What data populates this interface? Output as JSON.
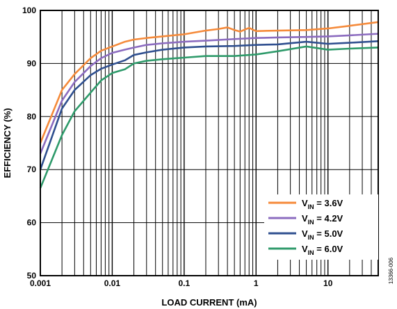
{
  "chart_data": {
    "type": "line",
    "xlabel": "LOAD CURRENT (mA)",
    "ylabel": "EFFICIENCY (%)",
    "x_scale": "log",
    "xlim": [
      0.001,
      50
    ],
    "ylim": [
      50,
      100
    ],
    "x_ticks": [
      0.001,
      0.01,
      0.1,
      1,
      10
    ],
    "x_tick_labels": [
      "0.001",
      "0.01",
      "0.1",
      "1",
      "10"
    ],
    "y_ticks": [
      50,
      60,
      70,
      80,
      90,
      100
    ],
    "y_tick_labels": [
      "50",
      "60",
      "70",
      "80",
      "90",
      "100"
    ],
    "grid": true,
    "legend_position": "bottom-right",
    "figure_id": "13366-006",
    "series": [
      {
        "name_main": "V",
        "name_sub": "IN",
        "name_rest": " = 3.6V",
        "color": "#f58a3a",
        "points": [
          [
            0.001,
            75.0
          ],
          [
            0.002,
            85.0
          ],
          [
            0.003,
            88.0
          ],
          [
            0.005,
            91.0
          ],
          [
            0.007,
            92.4
          ],
          [
            0.01,
            93.2
          ],
          [
            0.015,
            94.1
          ],
          [
            0.02,
            94.5
          ],
          [
            0.03,
            94.8
          ],
          [
            0.05,
            95.1
          ],
          [
            0.1,
            95.5
          ],
          [
            0.2,
            96.2
          ],
          [
            0.3,
            96.5
          ],
          [
            0.4,
            96.8
          ],
          [
            0.5,
            96.3
          ],
          [
            0.6,
            96.0
          ],
          [
            0.7,
            96.4
          ],
          [
            0.8,
            96.7
          ],
          [
            1,
            96.1
          ],
          [
            2,
            96.2
          ],
          [
            5,
            96.3
          ],
          [
            10,
            96.6
          ],
          [
            20,
            97.1
          ],
          [
            50,
            97.8
          ]
        ]
      },
      {
        "name_main": "V",
        "name_sub": "IN",
        "name_rest": " = 4.2V",
        "color": "#8b6bbf",
        "points": [
          [
            0.001,
            73.0
          ],
          [
            0.002,
            83.0
          ],
          [
            0.003,
            86.5
          ],
          [
            0.005,
            89.5
          ],
          [
            0.007,
            91.0
          ],
          [
            0.01,
            92.0
          ],
          [
            0.015,
            92.6
          ],
          [
            0.02,
            93.0
          ],
          [
            0.03,
            93.5
          ],
          [
            0.05,
            93.8
          ],
          [
            0.1,
            94.1
          ],
          [
            0.2,
            94.3
          ],
          [
            0.5,
            94.6
          ],
          [
            1,
            94.8
          ],
          [
            2,
            94.9
          ],
          [
            5,
            95.0
          ],
          [
            10,
            95.1
          ],
          [
            20,
            95.3
          ],
          [
            50,
            95.6
          ]
        ]
      },
      {
        "name_main": "V",
        "name_sub": "IN",
        "name_rest": " = 5.0V",
        "color": "#2f4f8f",
        "points": [
          [
            0.001,
            70.0
          ],
          [
            0.002,
            81.5
          ],
          [
            0.003,
            85.0
          ],
          [
            0.005,
            87.8
          ],
          [
            0.007,
            89.0
          ],
          [
            0.01,
            89.8
          ],
          [
            0.015,
            90.6
          ],
          [
            0.02,
            91.6
          ],
          [
            0.03,
            92.1
          ],
          [
            0.05,
            92.6
          ],
          [
            0.1,
            93.0
          ],
          [
            0.2,
            93.2
          ],
          [
            0.5,
            93.3
          ],
          [
            1,
            93.5
          ],
          [
            2,
            93.6
          ],
          [
            5,
            94.1
          ],
          [
            10,
            93.7
          ],
          [
            20,
            93.9
          ],
          [
            50,
            94.2
          ]
        ]
      },
      {
        "name_main": "V",
        "name_sub": "IN",
        "name_rest": " = 6.0V",
        "color": "#2e9a6a",
        "points": [
          [
            0.001,
            66.5
          ],
          [
            0.002,
            76.5
          ],
          [
            0.003,
            81.0
          ],
          [
            0.005,
            84.5
          ],
          [
            0.007,
            86.8
          ],
          [
            0.01,
            88.2
          ],
          [
            0.015,
            88.9
          ],
          [
            0.02,
            90.0
          ],
          [
            0.03,
            90.5
          ],
          [
            0.05,
            90.8
          ],
          [
            0.1,
            91.1
          ],
          [
            0.2,
            91.4
          ],
          [
            0.5,
            91.4
          ],
          [
            1,
            91.7
          ],
          [
            2,
            92.3
          ],
          [
            5,
            93.2
          ],
          [
            10,
            92.6
          ],
          [
            20,
            92.8
          ],
          [
            50,
            93.0
          ]
        ]
      }
    ]
  }
}
